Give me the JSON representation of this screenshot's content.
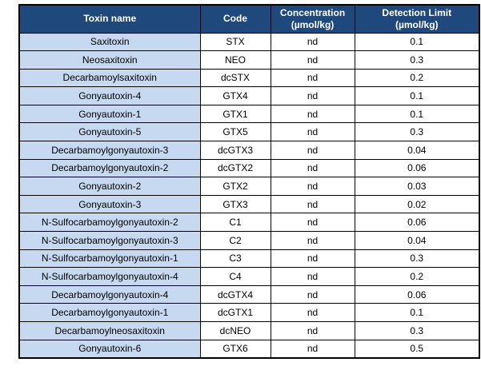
{
  "table": {
    "columns": [
      {
        "line1": "Toxin name",
        "line2": ""
      },
      {
        "line1": "Code",
        "line2": ""
      },
      {
        "line1": "Concentration",
        "line2": "(µmol/kg)"
      },
      {
        "line1": "Detection Limit",
        "line2": "(µmol/kg)"
      }
    ],
    "rows": [
      {
        "name": "Saxitoxin",
        "code": "STX",
        "concentration": "nd",
        "detection_limit": "0.1"
      },
      {
        "name": "Neosaxitoxin",
        "code": "NEO",
        "concentration": "nd",
        "detection_limit": "0.3"
      },
      {
        "name": "Decarbamoylsaxitoxin",
        "code": "dcSTX",
        "concentration": "nd",
        "detection_limit": "0.2"
      },
      {
        "name": "Gonyautoxin-4",
        "code": "GTX4",
        "concentration": "nd",
        "detection_limit": "0.1"
      },
      {
        "name": "Gonyautoxin-1",
        "code": "GTX1",
        "concentration": "nd",
        "detection_limit": "0.1"
      },
      {
        "name": "Gonyautoxin-5",
        "code": "GTX5",
        "concentration": "nd",
        "detection_limit": "0.3"
      },
      {
        "name": "Decarbamoylgonyautoxin-3",
        "code": "dcGTX3",
        "concentration": "nd",
        "detection_limit": "0.04"
      },
      {
        "name": "Decarbamoylgonyautoxin-2",
        "code": "dcGTX2",
        "concentration": "nd",
        "detection_limit": "0.06"
      },
      {
        "name": "Gonyautoxin-2",
        "code": "GTX2",
        "concentration": "nd",
        "detection_limit": "0.03"
      },
      {
        "name": "Gonyautoxin-3",
        "code": "GTX3",
        "concentration": "nd",
        "detection_limit": "0.02"
      },
      {
        "name": "N-Sulfocarbamoylgonyautoxin-2",
        "code": "C1",
        "concentration": "nd",
        "detection_limit": "0.06"
      },
      {
        "name": "N-Sulfocarbamoylgonyautoxin-3",
        "code": "C2",
        "concentration": "nd",
        "detection_limit": "0.04"
      },
      {
        "name": "N-Sulfocarbamoylgonyautoxin-1",
        "code": "C3",
        "concentration": "nd",
        "detection_limit": "0.3"
      },
      {
        "name": "N-Sulfocarbamoylgonyautoxin-4",
        "code": "C4",
        "concentration": "nd",
        "detection_limit": "0.2"
      },
      {
        "name": "Decarbamoylgonyautoxin-4",
        "code": "dcGTX4",
        "concentration": "nd",
        "detection_limit": "0.06"
      },
      {
        "name": "Decarbamoylgonyautoxin-1",
        "code": "dcGTX1",
        "concentration": "nd",
        "detection_limit": "0.1"
      },
      {
        "name": "Decarbamoylneosaxitoxin",
        "code": "dcNEO",
        "concentration": "nd",
        "detection_limit": "0.3"
      },
      {
        "name": "Gonyautoxin-6",
        "code": "GTX6",
        "concentration": "nd",
        "detection_limit": "0.5"
      }
    ]
  },
  "colors": {
    "header_bg": "#1F497D",
    "header_text": "#FFFFFF",
    "first_column_bg": "#C6D9F1",
    "border": "#000000",
    "page_bg": "#FFFFFF"
  }
}
